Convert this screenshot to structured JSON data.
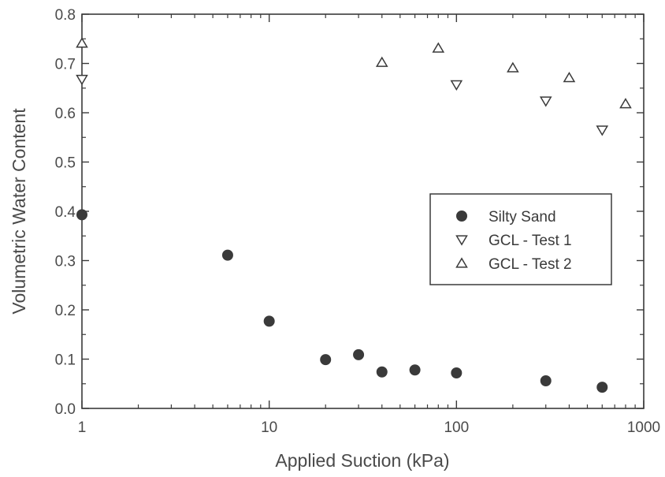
{
  "chart_data": {
    "type": "scatter",
    "xlabel": "Applied Suction (kPa)",
    "ylabel": "Volumetric Water Content",
    "xscale": "log",
    "xlim": [
      1,
      1000
    ],
    "ylim": [
      0.0,
      0.8
    ],
    "x_ticks": [
      1,
      10,
      100,
      1000
    ],
    "x_tick_labels": [
      "1",
      "10",
      "100",
      "1000"
    ],
    "y_ticks": [
      0.0,
      0.1,
      0.2,
      0.3,
      0.4,
      0.5,
      0.6,
      0.7,
      0.8
    ],
    "y_tick_labels": [
      "0.0",
      "0.1",
      "0.2",
      "0.3",
      "0.4",
      "0.5",
      "0.6",
      "0.7",
      "0.8"
    ],
    "grid": false,
    "legend_position": "right",
    "series": [
      {
        "name": "Silty Sand",
        "marker": "filled-circle",
        "color": "#3a3a3a",
        "points": [
          [
            1,
            0.393
          ],
          [
            6,
            0.311
          ],
          [
            10,
            0.177
          ],
          [
            20,
            0.099
          ],
          [
            30,
            0.109
          ],
          [
            40,
            0.074
          ],
          [
            60,
            0.078
          ],
          [
            100,
            0.072
          ],
          [
            300,
            0.056
          ],
          [
            600,
            0.043
          ]
        ]
      },
      {
        "name": "GCL - Test 1",
        "marker": "triangle-down",
        "color": "#3a3a3a",
        "points": [
          [
            1,
            0.668
          ],
          [
            100,
            0.657
          ],
          [
            300,
            0.624
          ],
          [
            600,
            0.565
          ]
        ]
      },
      {
        "name": "GCL - Test 2",
        "marker": "triangle-up",
        "color": "#3a3a3a",
        "points": [
          [
            1,
            0.741
          ],
          [
            40,
            0.702
          ],
          [
            80,
            0.731
          ],
          [
            200,
            0.691
          ],
          [
            400,
            0.671
          ],
          [
            800,
            0.618
          ]
        ]
      }
    ]
  }
}
